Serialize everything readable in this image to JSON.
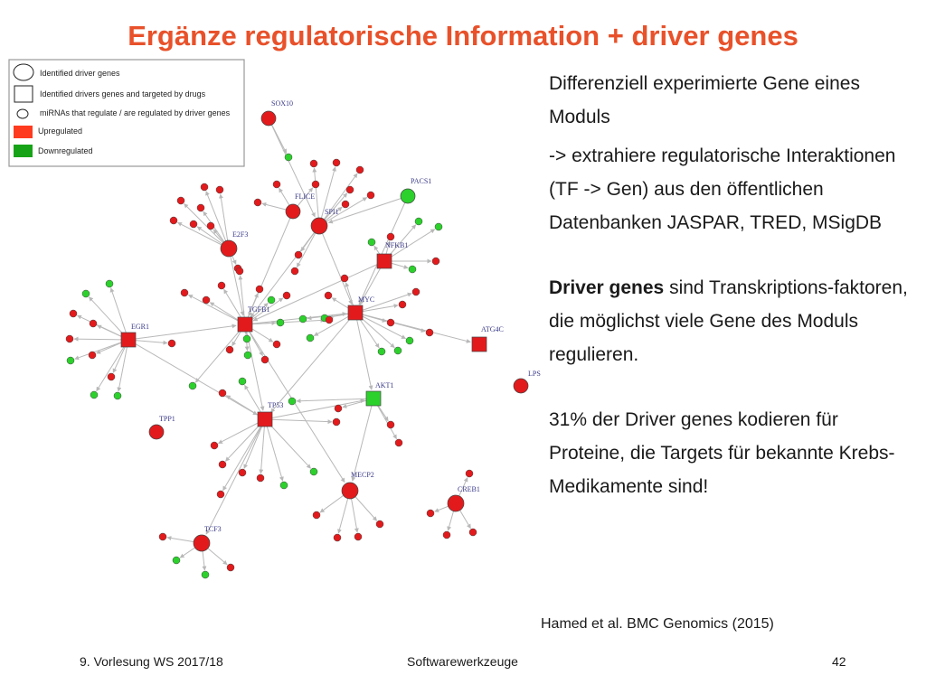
{
  "title": "Ergänze regulatorische Information + driver genes",
  "legend": {
    "items": [
      "Identified driver genes",
      "Identified drivers genes and targeted by drugs",
      "miRNAs that regulate / are regulated by driver genes",
      "Upregulated",
      "Downregulated"
    ]
  },
  "colors": {
    "up": "#e31a1c",
    "down": "#2cd12c",
    "edge": "#b8b8b8",
    "title": "#e8512a"
  },
  "network": {
    "labels": {
      "sox10": "SOX10",
      "pacs1": "PACS1",
      "flice": "FLICE",
      "spi1": "SPI1",
      "e2f3": "E2F3",
      "nfkb1": "NFKB1",
      "egr1": "EGR1",
      "tgfb1": "TGFB1",
      "myc": "MYC",
      "atg4c": "ATG4C",
      "lps": "LPS",
      "akt1": "AKT1",
      "tpp1": "TPP1",
      "tp53": "TP53",
      "mecp2": "MECP2",
      "creb1": "CREB1",
      "tcf3": "TCF3"
    }
  },
  "text": {
    "p1": "Differenziell experimierte Gene eines Moduls",
    "p2": "-> extrahiere regulatorische Interaktionen (TF -> Gen) aus den öffentlichen Datenbanken JASPAR, TRED, MSigDB",
    "p3_bold": "Driver genes",
    "p3_rest": " sind Transkriptions-faktoren, die möglichst viele Gene des Moduls regulieren.",
    "p4": "31% der Driver genes kodieren für Proteine, die Targets für bekannte Krebs-Medikamente sind!"
  },
  "citation": "Hamed et al. BMC Genomics (2015)",
  "footer": {
    "left": "9. Vorlesung WS 2017/18",
    "center": "Softwarewerkzeuge",
    "right": "42"
  }
}
